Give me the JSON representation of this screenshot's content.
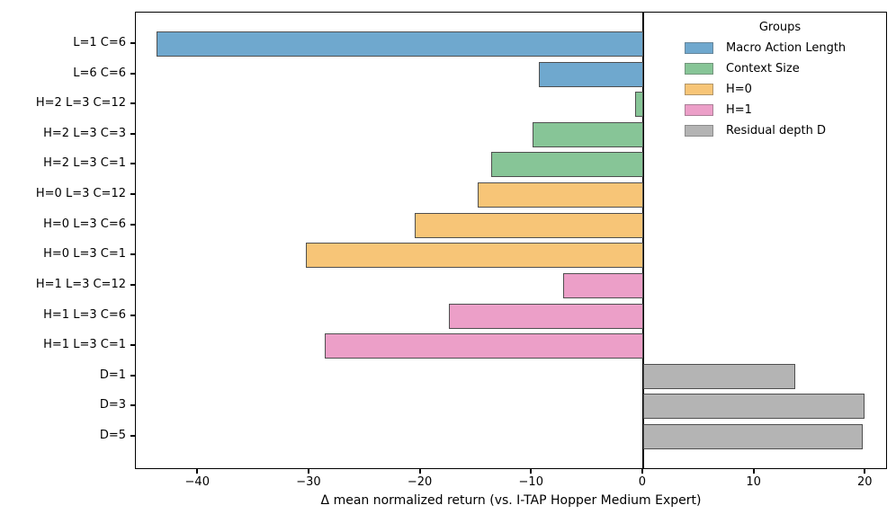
{
  "chart_data": {
    "type": "bar",
    "orientation": "horizontal",
    "title": "",
    "xlabel": "Δ mean normalized return (vs. I-TAP Hopper Medium Expert)",
    "ylabel": "",
    "xlim": [
      -45.6,
      22.0
    ],
    "grid": false,
    "zero_reference_line": true,
    "xticks": [
      -40,
      -30,
      -20,
      -10,
      0,
      10,
      20
    ],
    "xtick_labels": [
      "−40",
      "−30",
      "−20",
      "−10",
      "0",
      "10",
      "20"
    ],
    "bars": [
      {
        "category": "L=1 C=6",
        "value": -43.7,
        "group": "Macro Action Length"
      },
      {
        "category": "L=6 C=6",
        "value": -9.4,
        "group": "Macro Action Length"
      },
      {
        "category": "H=2 L=3 C=12",
        "value": -0.7,
        "group": "Context Size"
      },
      {
        "category": "H=2 L=3 C=3",
        "value": -9.9,
        "group": "Context Size"
      },
      {
        "category": "H=2 L=3 C=1",
        "value": -13.7,
        "group": "Context Size"
      },
      {
        "category": "H=0 L=3 C=12",
        "value": -14.9,
        "group": "H=0"
      },
      {
        "category": "H=0 L=3 C=6",
        "value": -20.5,
        "group": "H=0"
      },
      {
        "category": "H=0 L=3 C=1",
        "value": -30.3,
        "group": "H=0"
      },
      {
        "category": "H=1 L=3 C=12",
        "value": -7.2,
        "group": "H=1"
      },
      {
        "category": "H=1 L=3 C=6",
        "value": -17.5,
        "group": "H=1"
      },
      {
        "category": "H=1 L=3 C=1",
        "value": -28.6,
        "group": "H=1"
      },
      {
        "category": "D=1",
        "value": 13.7,
        "group": "Residual depth D"
      },
      {
        "category": "D=3",
        "value": 19.9,
        "group": "Residual depth D"
      },
      {
        "category": "D=5",
        "value": 19.7,
        "group": "Residual depth D"
      }
    ],
    "group_colors": {
      "Macro Action Length": "#6FA8CE",
      "Context Size": "#87C597",
      "H=0": "#F7C577",
      "H=1": "#EC9FC8",
      "Residual depth D": "#B4B4B4"
    },
    "legend": {
      "title": "Groups",
      "position": "upper right",
      "entries": [
        {
          "label": "Macro Action Length",
          "color": "#6FA8CE"
        },
        {
          "label": "Context Size",
          "color": "#87C597"
        },
        {
          "label": "H=0",
          "color": "#F7C577"
        },
        {
          "label": "H=1",
          "color": "#EC9FC8"
        },
        {
          "label": "Residual depth D",
          "color": "#B4B4B4"
        }
      ]
    },
    "colors": {
      "axis": "#000000",
      "bar_edge": "#4f4f4f",
      "background": "#ffffff"
    }
  }
}
